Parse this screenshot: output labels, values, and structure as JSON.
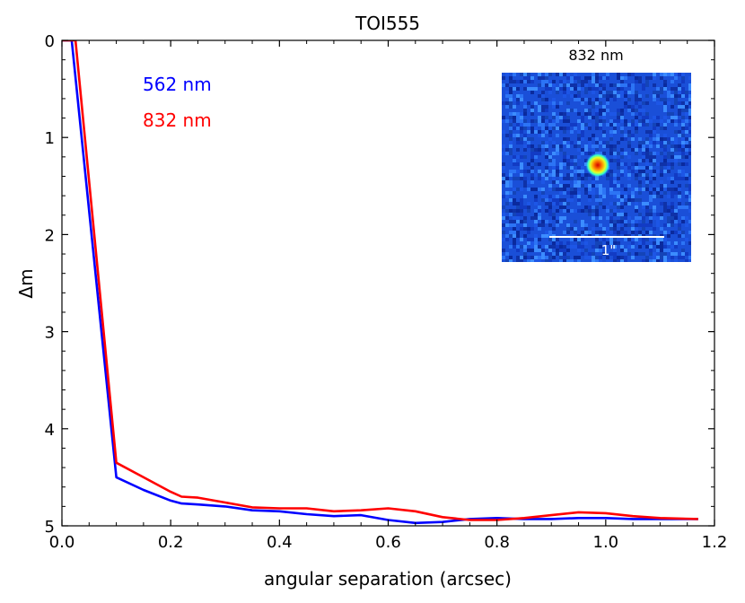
{
  "chart_data": {
    "type": "line",
    "title": "TOI555",
    "xlabel": "angular separation (arcsec)",
    "ylabel": "Δm",
    "xlim": [
      0.0,
      1.2
    ],
    "ylim": [
      0,
      5
    ],
    "y_inverted": true,
    "grid": false,
    "legend_placement": "top-left",
    "xticks": [
      "0.0",
      "0.2",
      "0.4",
      "0.6",
      "0.8",
      "1.0",
      "1.2"
    ],
    "yticks": [
      "0",
      "1",
      "2",
      "3",
      "4",
      "5"
    ],
    "series": [
      {
        "name": "562 nm",
        "color": "#0000ff",
        "x": [
          0.0,
          0.018,
          0.1,
          0.15,
          0.2,
          0.22,
          0.25,
          0.3,
          0.35,
          0.4,
          0.45,
          0.5,
          0.55,
          0.6,
          0.65,
          0.7,
          0.75,
          0.8,
          0.85,
          0.9,
          0.95,
          1.0,
          1.05,
          1.1,
          1.17
        ],
        "y": [
          0.0,
          0.0,
          4.5,
          4.63,
          4.74,
          4.77,
          4.78,
          4.8,
          4.84,
          4.85,
          4.88,
          4.9,
          4.89,
          4.94,
          4.97,
          4.96,
          4.93,
          4.92,
          4.93,
          4.93,
          4.92,
          4.92,
          4.93,
          4.93,
          4.93
        ]
      },
      {
        "name": "832 nm",
        "color": "#ff0000",
        "x": [
          0.0,
          0.025,
          0.1,
          0.15,
          0.2,
          0.22,
          0.25,
          0.3,
          0.35,
          0.4,
          0.45,
          0.5,
          0.55,
          0.6,
          0.65,
          0.7,
          0.75,
          0.8,
          0.85,
          0.9,
          0.95,
          1.0,
          1.05,
          1.1,
          1.17
        ],
        "y": [
          0.0,
          0.0,
          4.35,
          4.5,
          4.65,
          4.7,
          4.71,
          4.76,
          4.81,
          4.82,
          4.82,
          4.85,
          4.84,
          4.82,
          4.85,
          4.91,
          4.94,
          4.94,
          4.92,
          4.89,
          4.86,
          4.87,
          4.9,
          4.92,
          4.93
        ]
      }
    ],
    "legend": [
      {
        "label": "562 nm",
        "color": "#0000ff"
      },
      {
        "label": "832 nm",
        "color": "#ff0000"
      }
    ],
    "inset": {
      "title": "832 nm",
      "scale_label": "1\""
    }
  }
}
